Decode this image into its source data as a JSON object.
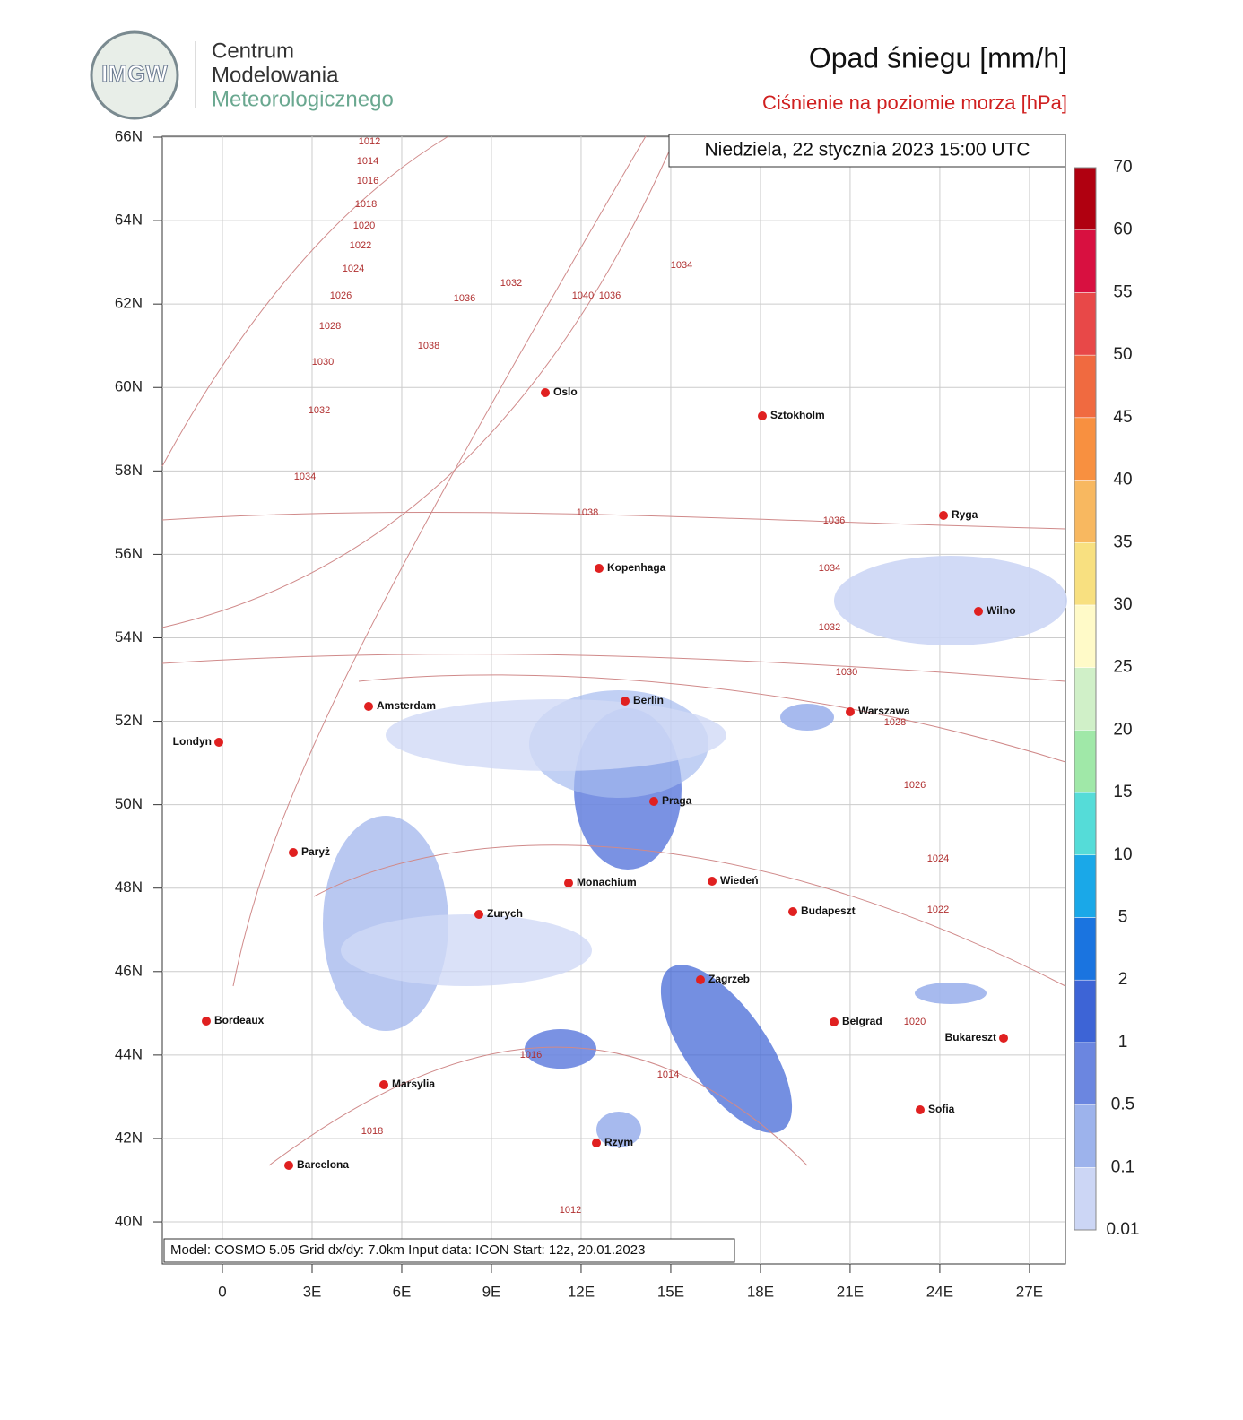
{
  "header": {
    "org_line1": "Centrum",
    "org_line2": "Modelowania",
    "org_line3": "Meteorologicznego",
    "logo_text": "IMGW",
    "title": "Opad śniegu [mm/h]",
    "subtitle": "Ciśnienie na poziomie morza [hPa]"
  },
  "map": {
    "date": "Niedziela, 22 stycznia 2023 15:00 UTC",
    "info": "Model: COSMO 5.05  Grid dx/dy: 7.0km  Input data: ICON  Start: 12z, 20.01.2023",
    "lat_ticks": [
      {
        "value": 66,
        "label": "66N"
      },
      {
        "value": 64,
        "label": "64N"
      },
      {
        "value": 62,
        "label": "62N"
      },
      {
        "value": 60,
        "label": "60N"
      },
      {
        "value": 58,
        "label": "58N"
      },
      {
        "value": 56,
        "label": "56N"
      },
      {
        "value": 54,
        "label": "54N"
      },
      {
        "value": 52,
        "label": "52N"
      },
      {
        "value": 50,
        "label": "50N"
      },
      {
        "value": 48,
        "label": "48N"
      },
      {
        "value": 46,
        "label": "46N"
      },
      {
        "value": 44,
        "label": "44N"
      },
      {
        "value": 42,
        "label": "42N"
      },
      {
        "value": 40,
        "label": "40N"
      }
    ],
    "lon_ticks": [
      0,
      {
        "value": 3,
        "label": "3E"
      },
      {
        "value": 6,
        "label": "6E"
      },
      {
        "value": 9,
        "label": "9E"
      },
      {
        "value": 12,
        "label": "12E"
      },
      {
        "value": 15,
        "label": "15E"
      },
      {
        "value": 18,
        "label": "18E"
      },
      {
        "value": 21,
        "label": "21E"
      },
      {
        "value": 24,
        "label": "24E"
      },
      {
        "value": 27,
        "label": "27E"
      }
    ],
    "cities": [
      "Oslo",
      "Sztokholm",
      "Ryga",
      "Kopenhaga",
      "Wilno",
      "Berlin",
      "Amsterdam",
      "Warszawa",
      "Londyn",
      "Praga",
      "Paryż",
      "Wiedeń",
      "Monachium",
      "Budapeszt",
      "Zurych",
      "Zagrzeb",
      "Bordeaux",
      "Belgrad",
      "Bukareszt",
      "Marsylia",
      "Sofia",
      "Rzym",
      "Barcelona"
    ],
    "isobars": [
      "1012",
      "1014",
      "1016",
      "1018",
      "1020",
      "1022",
      "1024",
      "1026",
      "1028",
      "1030",
      "1032",
      "1034",
      "1036",
      "1038",
      "1040",
      "1032",
      "1034",
      "1036",
      "1038",
      "1036",
      "1034",
      "1032",
      "1030",
      "1028",
      "1026",
      "1024",
      "1022",
      "1020",
      "1018",
      "1016",
      "1014",
      "1012"
    ]
  },
  "colorbar": {
    "levels": [
      0.01,
      0.1,
      0.5,
      1,
      2,
      5,
      10,
      15,
      20,
      25,
      30,
      35,
      40,
      45,
      50,
      55,
      60,
      70
    ],
    "colors": [
      "#ccd6f5",
      "#9db3ec",
      "#6b86e0",
      "#3d64d6",
      "#1a74e0",
      "#1aa8e8",
      "#55dcd8",
      "#a0e8a8",
      "#d0f0c8",
      "#fffac8",
      "#f8e080",
      "#f8b860",
      "#f89040",
      "#f06a40",
      "#e84848",
      "#d81040",
      "#b00010"
    ]
  }
}
